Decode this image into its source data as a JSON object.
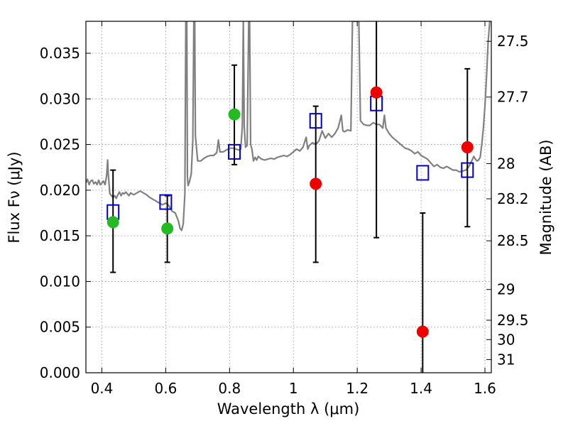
{
  "chart_data": {
    "type": "scatter",
    "title": "",
    "xlabel": "Wavelength λ (μm)",
    "ylabel": "Flux Fν (μJy)",
    "y2label": "Magnitude (AB)",
    "xlim": [
      0.35,
      1.62
    ],
    "ylim": [
      0.0,
      0.0385
    ],
    "grid": true,
    "legend": "none",
    "x_ticks": [
      0.4,
      0.6,
      0.8,
      1.0,
      1.2,
      1.4,
      1.6
    ],
    "x_tick_labels": [
      "0.4",
      "0.6",
      "0.8",
      "1",
      "1.2",
      "1.4",
      "1.6"
    ],
    "y_ticks": [
      0.0,
      0.005,
      0.01,
      0.015,
      0.02,
      0.025,
      0.03,
      0.035
    ],
    "y_tick_labels": [
      "0.000",
      "0.005",
      "0.010",
      "0.015",
      "0.020",
      "0.025",
      "0.030",
      "0.035"
    ],
    "y2_ticks": [
      {
        "label": "27.5",
        "mag": 27.5
      },
      {
        "label": "27.7",
        "mag": 27.7
      },
      {
        "label": "28",
        "mag": 28.0
      },
      {
        "label": "28.2",
        "mag": 28.2
      },
      {
        "label": "28.5",
        "mag": 28.5
      },
      {
        "label": "29",
        "mag": 29.0
      },
      {
        "label": "29.5",
        "mag": 29.5
      },
      {
        "label": "30",
        "mag": 30.0
      },
      {
        "label": "31",
        "mag": 31.0
      }
    ],
    "colors": {
      "model": "#808080",
      "model_flux": "#0000cc",
      "observed_detection": "#ee0000",
      "observed_hst": "#22bb22",
      "errorbar": "#000000"
    },
    "series": [
      {
        "kind": "line",
        "color": "#808080",
        "points": [
          [
            0.35,
            0.0208
          ],
          [
            0.355,
            0.0212
          ],
          [
            0.36,
            0.0206
          ],
          [
            0.365,
            0.021
          ],
          [
            0.37,
            0.0211
          ],
          [
            0.375,
            0.0207
          ],
          [
            0.38,
            0.0209
          ],
          [
            0.385,
            0.0206
          ],
          [
            0.39,
            0.0211
          ],
          [
            0.395,
            0.0206
          ],
          [
            0.4,
            0.0208
          ],
          [
            0.405,
            0.021
          ],
          [
            0.41,
            0.0206
          ],
          [
            0.415,
            0.0216
          ],
          [
            0.418,
            0.0233
          ],
          [
            0.42,
            0.0218
          ],
          [
            0.425,
            0.0196
          ],
          [
            0.43,
            0.0194
          ],
          [
            0.435,
            0.0192
          ],
          [
            0.44,
            0.0194
          ],
          [
            0.445,
            0.0191
          ],
          [
            0.45,
            0.0195
          ],
          [
            0.455,
            0.0198
          ],
          [
            0.46,
            0.0194
          ],
          [
            0.465,
            0.0197
          ],
          [
            0.47,
            0.0196
          ],
          [
            0.475,
            0.0198
          ],
          [
            0.48,
            0.0196
          ],
          [
            0.485,
            0.0194
          ],
          [
            0.49,
            0.0197
          ],
          [
            0.5,
            0.0195
          ],
          [
            0.51,
            0.0197
          ],
          [
            0.52,
            0.0199
          ],
          [
            0.53,
            0.0197
          ],
          [
            0.54,
            0.0195
          ],
          [
            0.55,
            0.0192
          ],
          [
            0.56,
            0.019
          ],
          [
            0.57,
            0.0188
          ],
          [
            0.58,
            0.0186
          ],
          [
            0.59,
            0.0184
          ],
          [
            0.6,
            0.0186
          ],
          [
            0.61,
            0.0183
          ],
          [
            0.62,
            0.0177
          ],
          [
            0.63,
            0.0175
          ],
          [
            0.64,
            0.0166
          ],
          [
            0.645,
            0.0158
          ],
          [
            0.65,
            0.0156
          ],
          [
            0.655,
            0.0163
          ],
          [
            0.66,
            0.0196
          ],
          [
            0.663,
            0.0385
          ],
          [
            0.666,
            0.0385
          ],
          [
            0.668,
            0.0215
          ],
          [
            0.67,
            0.0205
          ],
          [
            0.675,
            0.021
          ],
          [
            0.68,
            0.0218
          ],
          [
            0.685,
            0.0255
          ],
          [
            0.688,
            0.0385
          ],
          [
            0.691,
            0.0385
          ],
          [
            0.693,
            0.026
          ],
          [
            0.7,
            0.0232
          ],
          [
            0.71,
            0.0232
          ],
          [
            0.72,
            0.0235
          ],
          [
            0.73,
            0.0237
          ],
          [
            0.74,
            0.0238
          ],
          [
            0.75,
            0.0238
          ],
          [
            0.76,
            0.0241
          ],
          [
            0.765,
            0.0255
          ],
          [
            0.77,
            0.0242
          ],
          [
            0.78,
            0.0242
          ],
          [
            0.79,
            0.0244
          ],
          [
            0.8,
            0.0246
          ],
          [
            0.81,
            0.0246
          ],
          [
            0.82,
            0.0245
          ],
          [
            0.83,
            0.0244
          ],
          [
            0.835,
            0.0245
          ],
          [
            0.84,
            0.027
          ],
          [
            0.843,
            0.0385
          ],
          [
            0.846,
            0.027
          ],
          [
            0.85,
            0.0247
          ],
          [
            0.855,
            0.0249
          ],
          [
            0.86,
            0.0385
          ],
          [
            0.863,
            0.0385
          ],
          [
            0.866,
            0.025
          ],
          [
            0.87,
            0.0245
          ],
          [
            0.875,
            0.0232
          ],
          [
            0.88,
            0.0236
          ],
          [
            0.885,
            0.0233
          ],
          [
            0.89,
            0.0237
          ],
          [
            0.9,
            0.0234
          ],
          [
            0.91,
            0.0233
          ],
          [
            0.92,
            0.0234
          ],
          [
            0.93,
            0.0235
          ],
          [
            0.94,
            0.0234
          ],
          [
            0.95,
            0.0236
          ],
          [
            0.96,
            0.0237
          ],
          [
            0.97,
            0.0238
          ],
          [
            0.98,
            0.0237
          ],
          [
            0.99,
            0.0239
          ],
          [
            1.0,
            0.0242
          ],
          [
            1.01,
            0.0245
          ],
          [
            1.02,
            0.0243
          ],
          [
            1.03,
            0.0247
          ],
          [
            1.04,
            0.0258
          ],
          [
            1.045,
            0.0245
          ],
          [
            1.05,
            0.0249
          ],
          [
            1.06,
            0.0252
          ],
          [
            1.07,
            0.025
          ],
          [
            1.08,
            0.0254
          ],
          [
            1.09,
            0.0265
          ],
          [
            1.1,
            0.0257
          ],
          [
            1.11,
            0.0262
          ],
          [
            1.12,
            0.0258
          ],
          [
            1.13,
            0.0262
          ],
          [
            1.14,
            0.0268
          ],
          [
            1.15,
            0.0282
          ],
          [
            1.155,
            0.0265
          ],
          [
            1.16,
            0.0264
          ],
          [
            1.17,
            0.0266
          ],
          [
            1.18,
            0.0265
          ],
          [
            1.185,
            0.0385
          ],
          [
            1.19,
            0.0385
          ],
          [
            1.2,
            0.0385
          ],
          [
            1.205,
            0.0385
          ],
          [
            1.21,
            0.0276
          ],
          [
            1.22,
            0.0272
          ],
          [
            1.23,
            0.0271
          ],
          [
            1.24,
            0.0271
          ],
          [
            1.25,
            0.0274
          ],
          [
            1.26,
            0.0272
          ],
          [
            1.27,
            0.0272
          ],
          [
            1.28,
            0.0268
          ],
          [
            1.285,
            0.0282
          ],
          [
            1.29,
            0.0268
          ],
          [
            1.3,
            0.0262
          ],
          [
            1.31,
            0.0258
          ],
          [
            1.32,
            0.0255
          ],
          [
            1.33,
            0.0252
          ],
          [
            1.34,
            0.0249
          ],
          [
            1.35,
            0.0246
          ],
          [
            1.36,
            0.0245
          ],
          [
            1.37,
            0.0243
          ],
          [
            1.38,
            0.024
          ],
          [
            1.39,
            0.0242
          ],
          [
            1.4,
            0.0238
          ],
          [
            1.41,
            0.0236
          ],
          [
            1.42,
            0.0234
          ],
          [
            1.43,
            0.023
          ],
          [
            1.44,
            0.0226
          ],
          [
            1.45,
            0.0228
          ],
          [
            1.46,
            0.0225
          ],
          [
            1.47,
            0.0224
          ],
          [
            1.48,
            0.0226
          ],
          [
            1.49,
            0.0224
          ],
          [
            1.5,
            0.0222
          ],
          [
            1.51,
            0.0222
          ],
          [
            1.52,
            0.022
          ],
          [
            1.53,
            0.0221
          ],
          [
            1.54,
            0.0222
          ],
          [
            1.55,
            0.0226
          ],
          [
            1.56,
            0.0233
          ],
          [
            1.565,
            0.0237
          ],
          [
            1.57,
            0.0234
          ],
          [
            1.575,
            0.0232
          ],
          [
            1.58,
            0.0233
          ],
          [
            1.585,
            0.0236
          ],
          [
            1.59,
            0.025
          ],
          [
            1.595,
            0.0268
          ],
          [
            1.6,
            0.0292
          ],
          [
            1.605,
            0.0325
          ],
          [
            1.61,
            0.0362
          ],
          [
            1.615,
            0.0385
          ]
        ]
      },
      {
        "kind": "open-square",
        "color": "#0000cc",
        "points": [
          [
            0.435,
            0.0176
          ],
          [
            0.6,
            0.0187
          ],
          [
            0.815,
            0.0242
          ],
          [
            1.07,
            0.0276
          ],
          [
            1.26,
            0.0295
          ],
          [
            1.405,
            0.0219
          ],
          [
            1.545,
            0.0222
          ]
        ]
      },
      {
        "kind": "filled-circle",
        "color": "#22bb22",
        "points": [
          [
            0.435,
            0.0165
          ],
          [
            0.605,
            0.0158
          ],
          [
            0.815,
            0.0283
          ]
        ],
        "errors": [
          [
            0.011,
            0.0222
          ],
          [
            0.0121,
            0.0194
          ],
          [
            0.0228,
            0.0337
          ]
        ]
      },
      {
        "kind": "filled-circle",
        "color": "#ee0000",
        "points": [
          [
            1.07,
            0.0207
          ],
          [
            1.26,
            0.0307
          ],
          [
            1.405,
            0.0045
          ],
          [
            1.545,
            0.0247
          ]
        ],
        "errors": [
          [
            0.0121,
            0.0292
          ],
          [
            0.0148,
            0.0385
          ],
          [
            0.0,
            0.0175
          ],
          [
            0.016,
            0.0333
          ]
        ]
      }
    ]
  }
}
